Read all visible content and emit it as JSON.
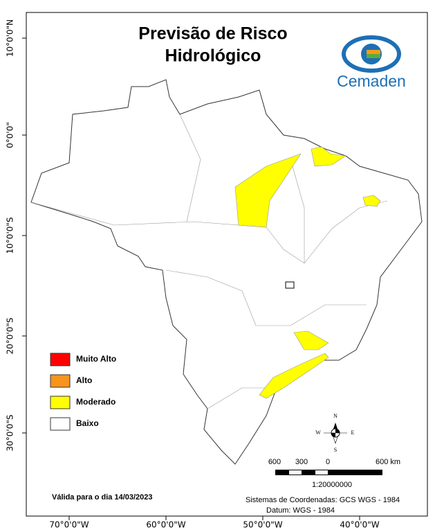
{
  "title": [
    "Previsão de Risco",
    "Hidrológico"
  ],
  "logo": "Cemaden",
  "legend": [
    {
      "label": "Muito Alto",
      "color": "#ff0000"
    },
    {
      "label": "Alto",
      "color": "#f7941d"
    },
    {
      "label": "Moderado",
      "color": "#ffff00"
    },
    {
      "label": "Baixo",
      "color": "#ffffff"
    }
  ],
  "lat_labels": [
    "10°0'0\"N",
    "0°0'0\"",
    "10°0'0\"S",
    "20°0'0\"S",
    "30°0'0\"S"
  ],
  "lon_labels": [
    "70°0'0\"W",
    "60°0'0\"W",
    "50°0'0\"W",
    "40°0'0\"W"
  ],
  "compass": [
    "N",
    "S",
    "W",
    "E"
  ],
  "scale": {
    "labels": [
      "600",
      "300",
      "0",
      "600 km"
    ],
    "ratio": "1:20000000"
  },
  "validity": "Válida para o dia 14/03/2023",
  "coordinate_system": [
    "Sistemas de Coordenadas: GCS WGS - 1984",
    "Datum: WGS - 1984"
  ]
}
